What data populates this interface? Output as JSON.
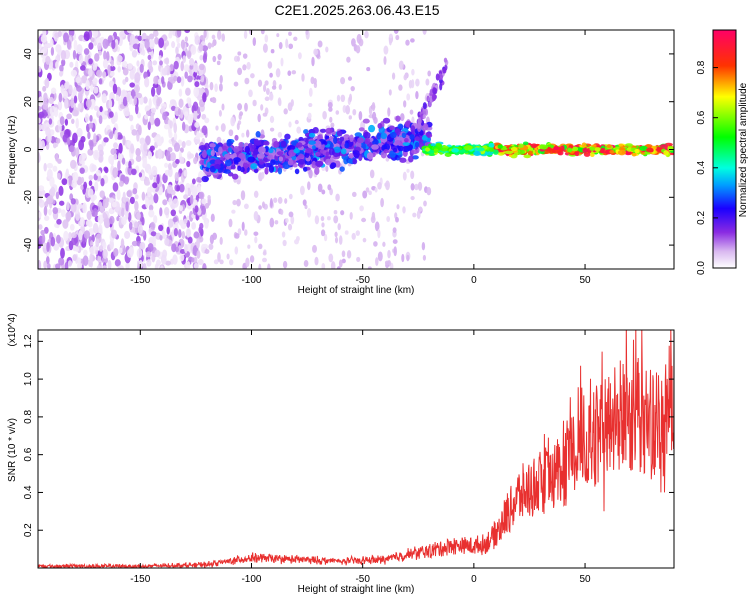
{
  "title": "C2E1.2025.263.06.43.E15",
  "chart_data": [
    {
      "type": "heatmap",
      "xlabel": "Height of straight line (km)",
      "ylabel": "Frequency (Hz)",
      "xlim": [
        -196,
        90
      ],
      "ylim": [
        -50,
        50
      ],
      "xticks": [
        -150,
        -100,
        -50,
        0,
        50
      ],
      "yticks": [
        -40,
        -20,
        0,
        20,
        40
      ],
      "colorbar": {
        "label": "Normalized spectral amplitude",
        "range": [
          0,
          0.95
        ],
        "ticks": [
          "0.0",
          "0.2",
          "0.4",
          "0.6",
          "0.8"
        ],
        "tick_values": [
          0,
          0.2,
          0.4,
          0.6,
          0.8
        ],
        "colors": [
          "#ffffff",
          "#6600cc",
          "#0000ff",
          "#00ffff",
          "#00ff00",
          "#ffff00",
          "#ff0000",
          "#ff0066"
        ]
      },
      "regions": [
        {
          "x_range": [
            -196,
            -120
          ],
          "freq_range": [
            -50,
            50
          ],
          "amplitude_range": [
            0.0,
            0.1
          ],
          "pattern": "scattered noise"
        },
        {
          "x_range": [
            -120,
            -20
          ],
          "freq_center": [
            -5,
            5
          ],
          "freq_spread": 8,
          "amplitude_range": [
            0.05,
            0.35
          ],
          "pattern": "band rising from -5 Hz to +5 Hz"
        },
        {
          "x_range": [
            -25,
            -12
          ],
          "freq_center": [
            10,
            36
          ],
          "amplitude_range": [
            0.05,
            0.15
          ],
          "pattern": "rising streak"
        },
        {
          "x_range": [
            -20,
            90
          ],
          "freq_center": [
            0,
            0
          ],
          "freq_spread": 2,
          "amplitude_range": [
            0.3,
            0.95
          ],
          "pattern": "narrow band at 0 Hz"
        }
      ]
    },
    {
      "type": "line",
      "xlabel": "Height of straight line (km)",
      "ylabel": "SNR (10 * v/v)",
      "y_multiplier": "(x10^4)",
      "xlim": [
        -196,
        90
      ],
      "ylim": [
        0,
        1.26
      ],
      "xticks": [
        -150,
        -100,
        -50,
        0,
        50
      ],
      "yticks": [
        0.2,
        0.4,
        0.6,
        0.8,
        1.0,
        1.2
      ],
      "color": "#e8302f",
      "envelope": {
        "x": [
          -196,
          -150,
          -120,
          -110,
          -100,
          -80,
          -60,
          -40,
          -30,
          -20,
          -10,
          0,
          5,
          10,
          15,
          20,
          30,
          40,
          50,
          60,
          65,
          70,
          75,
          80,
          85,
          88,
          90
        ],
        "y": [
          0.01,
          0.01,
          0.02,
          0.04,
          0.06,
          0.05,
          0.04,
          0.05,
          0.08,
          0.1,
          0.13,
          0.13,
          0.14,
          0.2,
          0.32,
          0.42,
          0.5,
          0.58,
          0.75,
          0.82,
          0.9,
          0.9,
          0.88,
          0.85,
          0.8,
          1.05,
          0.95
        ]
      }
    }
  ]
}
